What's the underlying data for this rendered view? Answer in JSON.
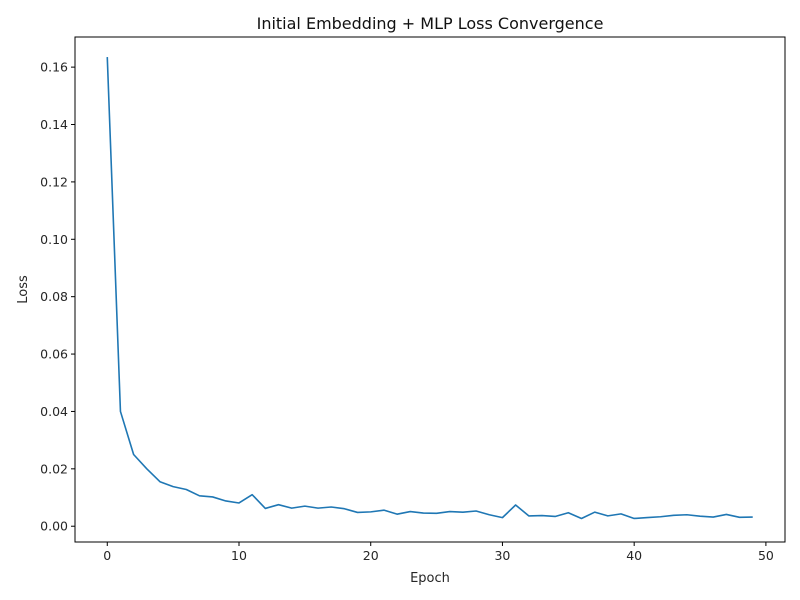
{
  "chart_data": {
    "type": "line",
    "title": "Initial Embedding + MLP Loss Convergence",
    "xlabel": "Epoch",
    "ylabel": "Loss",
    "xlim": [
      -2.45,
      51.45
    ],
    "ylim": [
      -0.0055,
      0.1705
    ],
    "xticks": [
      0,
      10,
      20,
      30,
      40,
      50
    ],
    "xtick_labels": [
      "0",
      "10",
      "20",
      "30",
      "40",
      "50"
    ],
    "yticks": [
      0.0,
      0.02,
      0.04,
      0.06,
      0.08,
      0.1,
      0.12,
      0.14,
      0.16
    ],
    "ytick_labels": [
      "0.00",
      "0.02",
      "0.04",
      "0.06",
      "0.08",
      "0.10",
      "0.12",
      "0.14",
      "0.16"
    ],
    "grid": false,
    "series": [
      {
        "color": "#1f77b4",
        "x": [
          0,
          1,
          2,
          3,
          4,
          5,
          6,
          7,
          8,
          9,
          10,
          11,
          12,
          13,
          14,
          15,
          16,
          17,
          18,
          19,
          20,
          21,
          22,
          23,
          24,
          25,
          26,
          27,
          28,
          29,
          30,
          31,
          32,
          33,
          34,
          35,
          36,
          37,
          38,
          39,
          40,
          41,
          42,
          43,
          44,
          45,
          46,
          47,
          48,
          49
        ],
        "y": [
          0.1635,
          0.04,
          0.025,
          0.02,
          0.0155,
          0.0138,
          0.0128,
          0.0106,
          0.0102,
          0.0088,
          0.0081,
          0.011,
          0.0062,
          0.0075,
          0.0063,
          0.007,
          0.0063,
          0.0067,
          0.0061,
          0.0048,
          0.005,
          0.0056,
          0.0042,
          0.0051,
          0.0046,
          0.0045,
          0.0051,
          0.0049,
          0.0053,
          0.004,
          0.003,
          0.0074,
          0.0036,
          0.0037,
          0.0034,
          0.0047,
          0.0027,
          0.0049,
          0.0036,
          0.0043,
          0.0027,
          0.003,
          0.0033,
          0.0038,
          0.004,
          0.0035,
          0.0032,
          0.0041,
          0.0031,
          0.0032
        ]
      }
    ]
  }
}
